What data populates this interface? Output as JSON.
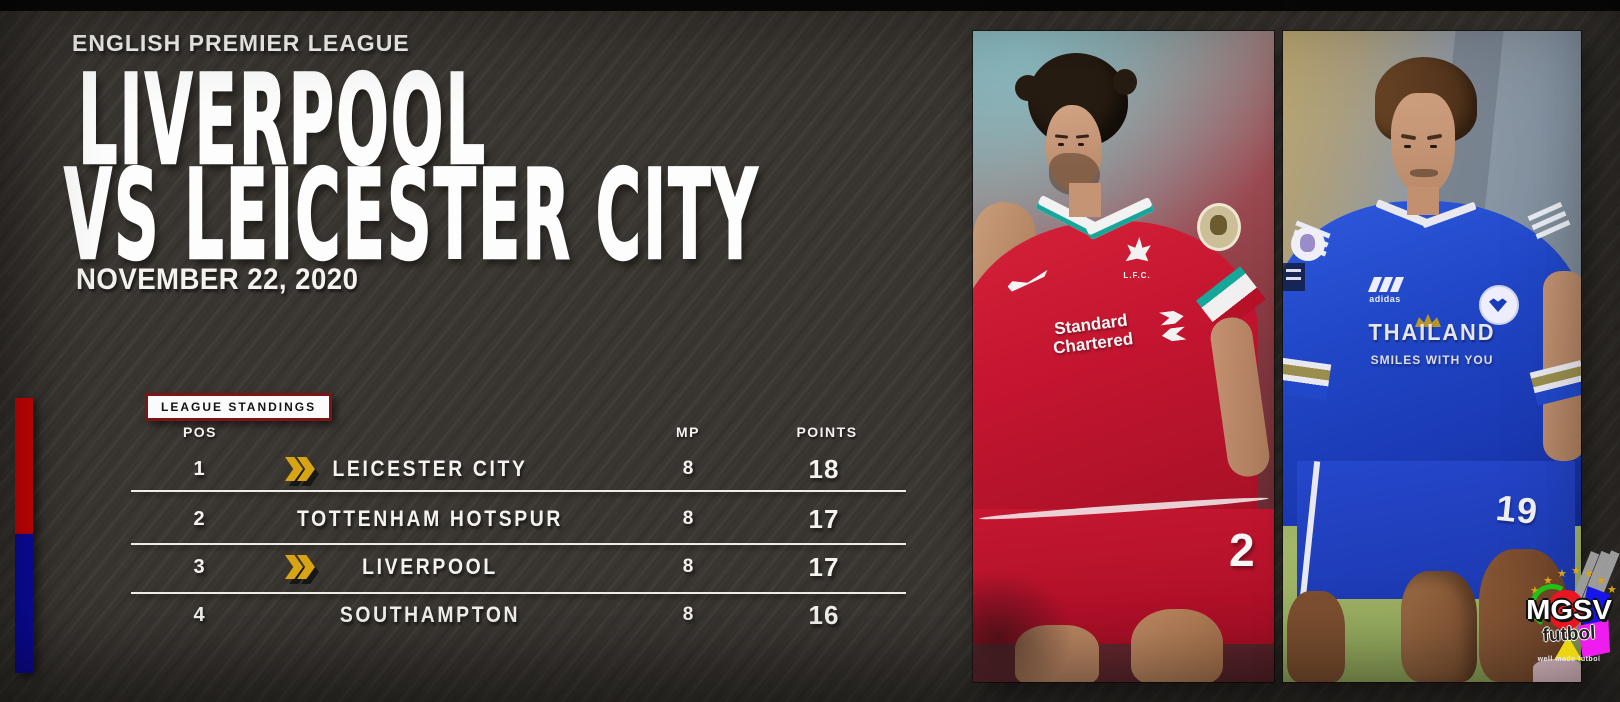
{
  "header": {
    "league_label": "ENGLISH PREMIER LEAGUE",
    "title_line1": "LIVERPOOL",
    "title_line2": "VS LEICESTER CITY",
    "match_date": "NOVEMBER 22, 2020"
  },
  "standings": {
    "section_label": "LEAGUE STANDINGS",
    "columns": {
      "pos": "POS",
      "mp": "MP",
      "points": "POINTS"
    },
    "rows": [
      {
        "pos": "1",
        "team": "LEICESTER CITY",
        "mp": "8",
        "points": "18",
        "marker": true
      },
      {
        "pos": "2",
        "team": "TOTTENHAM HOTSPUR",
        "mp": "8",
        "points": "17",
        "marker": false
      },
      {
        "pos": "3",
        "team": "LIVERPOOL",
        "mp": "8",
        "points": "17",
        "marker": true
      },
      {
        "pos": "4",
        "team": "SOUTHAMPTON",
        "mp": "8",
        "points": "16",
        "marker": false
      }
    ]
  },
  "photo_left": {
    "description": "Liverpool player in red home kit",
    "jersey_sponsor_line1": "Standard",
    "jersey_sponsor_line2": "Chartered",
    "crest_label": "L.F.C.",
    "shorts_number": "2"
  },
  "photo_right": {
    "description": "Leicester City player in blue home kit",
    "brand_label": "adidas",
    "jersey_sponsor_line1": "THAILAND",
    "jersey_sponsor_line2": "SMILES WITH YOU",
    "shorts_number": "19"
  },
  "logo": {
    "title": "MGSV",
    "subtitle": "futbol",
    "tagline": "well made futbol"
  },
  "icons": {
    "star": "★"
  },
  "colors": {
    "bg": "#3a3631",
    "top_bar": "#0a0a0a",
    "bar_red": "#d30505",
    "bar_blue": "#0c0ba5",
    "chevron_gold": "#d8a413",
    "label_border": "#7d1416",
    "label_bg": "#fbfbfb",
    "divider": "#efece6",
    "text_white": "#f5f3ef",
    "liverpool_red": "#c21430",
    "leicester_blue": "#2148c8",
    "pitch_green": "#a3b76a",
    "logo_red": "#ea1520",
    "logo_green": "#1dc414",
    "logo_blue": "#1616ea",
    "logo_magenta": "#ee1cee",
    "logo_yellow": "#ecd513",
    "logo_gray": "#9b9b9b",
    "star_gold": "#d8a515"
  }
}
